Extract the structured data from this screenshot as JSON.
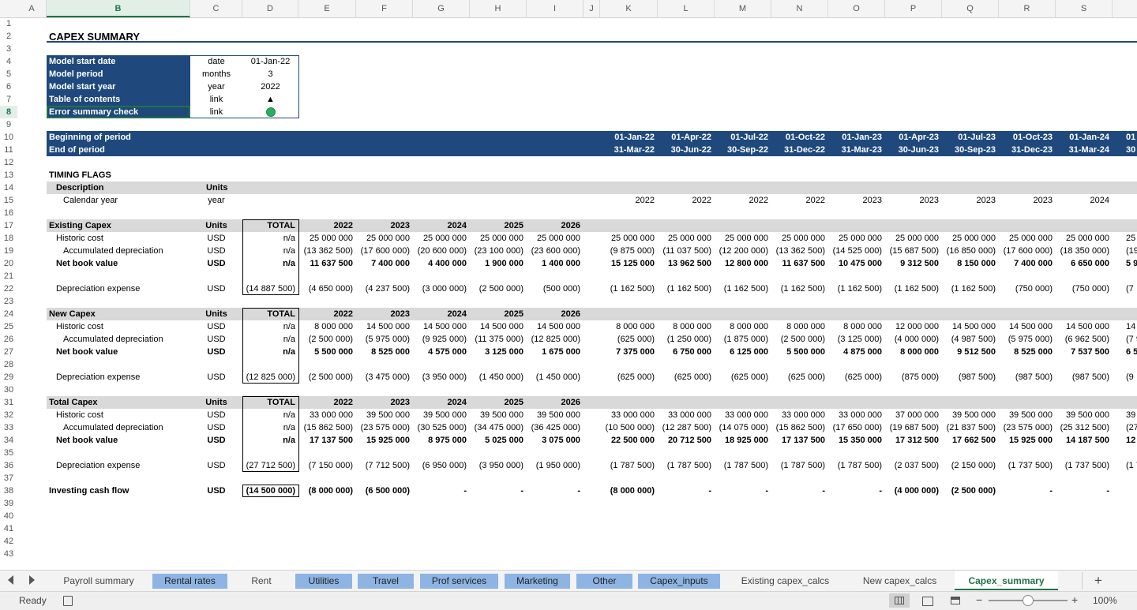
{
  "columns": [
    "A",
    "B",
    "C",
    "D",
    "E",
    "F",
    "G",
    "H",
    "I",
    "J",
    "K",
    "L",
    "M",
    "N",
    "O",
    "P",
    "Q",
    "R",
    "S"
  ],
  "rows": [
    "1",
    "2",
    "3",
    "4",
    "5",
    "6",
    "7",
    "8",
    "9",
    "10",
    "11",
    "12",
    "13",
    "14",
    "15",
    "16",
    "17",
    "18",
    "19",
    "20",
    "21",
    "22",
    "23",
    "24",
    "25",
    "26",
    "27",
    "28",
    "29",
    "30",
    "31",
    "32",
    "33",
    "34",
    "35",
    "36",
    "37",
    "38",
    "39",
    "40",
    "41",
    "42",
    "43"
  ],
  "title": "CAPEX SUMMARY",
  "info": [
    {
      "label": "Model start date",
      "unit": "date",
      "value": "01-Jan-22"
    },
    {
      "label": "Model period",
      "unit": "months",
      "value": "3"
    },
    {
      "label": "Model start year",
      "unit": "year",
      "value": "2022"
    },
    {
      "label": "Table of contents",
      "unit": "link",
      "value": "▲"
    },
    {
      "label": "Error summary check",
      "unit": "link",
      "value": ""
    }
  ],
  "error_check_color": "#27ae60",
  "accent_blue": "#1f497d",
  "period_header": {
    "begin_label": "Beginning of period",
    "end_label": "End of period",
    "begin": [
      "01-Jan-22",
      "01-Apr-22",
      "01-Jul-22",
      "01-Oct-22",
      "01-Jan-23",
      "01-Apr-23",
      "01-Jul-23",
      "01-Oct-23",
      "01-Jan-24",
      "01"
    ],
    "end": [
      "31-Mar-22",
      "30-Jun-22",
      "30-Sep-22",
      "31-Dec-22",
      "31-Mar-23",
      "30-Jun-23",
      "30-Sep-23",
      "31-Dec-23",
      "31-Mar-24",
      "30"
    ]
  },
  "timing": {
    "title": "TIMING FLAGS",
    "desc_label": "Description",
    "units_label": "Units",
    "cal_label": "Calendar year",
    "cal_unit": "year",
    "cal_values": [
      "2022",
      "2022",
      "2022",
      "2022",
      "2023",
      "2023",
      "2023",
      "2023",
      "2024"
    ]
  },
  "blocks": [
    {
      "header": "Existing Capex",
      "units": "Units",
      "total": "TOTAL",
      "years": [
        "2022",
        "2023",
        "2024",
        "2025",
        "2026"
      ],
      "rows": [
        {
          "label": "Historic cost",
          "unit": "USD",
          "total": "n/a",
          "years": [
            "25 000 000",
            "25 000 000",
            "25 000 000",
            "25 000 000",
            "25 000 000"
          ],
          "periods": [
            "25 000 000",
            "25 000 000",
            "25 000 000",
            "25 000 000",
            "25 000 000",
            "25 000 000",
            "25 000 000",
            "25 000 000",
            "25 000 000",
            "25 0"
          ]
        },
        {
          "label": "Accumulated depreciation",
          "unit": "USD",
          "total": "n/a",
          "years": [
            "(13 362 500)",
            "(17 600 000)",
            "(20 600 000)",
            "(23 100 000)",
            "(23 600 000)"
          ],
          "periods": [
            "(9 875 000)",
            "(11 037 500)",
            "(12 200 000)",
            "(13 362 500)",
            "(14 525 000)",
            "(15 687 500)",
            "(16 850 000)",
            "(17 600 000)",
            "(18 350 000)",
            "(19 1"
          ]
        },
        {
          "label": "Net book value",
          "unit": "USD",
          "total": "n/a",
          "years": [
            "11 637 500",
            "7 400 000",
            "4 400 000",
            "1 900 000",
            "1 400 000"
          ],
          "periods": [
            "15 125 000",
            "13 962 500",
            "12 800 000",
            "11 637 500",
            "10 475 000",
            "9 312 500",
            "8 150 000",
            "7 400 000",
            "6 650 000",
            "5 9"
          ]
        }
      ],
      "dep": {
        "label": "Depreciation expense",
        "unit": "USD",
        "total": "(14 887 500)",
        "years": [
          "(4 650 000)",
          "(4 237 500)",
          "(3 000 000)",
          "(2 500 000)",
          "(500 000)"
        ],
        "periods": [
          "(1 162 500)",
          "(1 162 500)",
          "(1 162 500)",
          "(1 162 500)",
          "(1 162 500)",
          "(1 162 500)",
          "(1 162 500)",
          "(750 000)",
          "(750 000)",
          "(7"
        ]
      }
    },
    {
      "header": "New Capex",
      "units": "Units",
      "total": "TOTAL",
      "years": [
        "2022",
        "2023",
        "2024",
        "2025",
        "2026"
      ],
      "rows": [
        {
          "label": "Historic cost",
          "unit": "USD",
          "total": "n/a",
          "years": [
            "8 000 000",
            "14 500 000",
            "14 500 000",
            "14 500 000",
            "14 500 000"
          ],
          "periods": [
            "8 000 000",
            "8 000 000",
            "8 000 000",
            "8 000 000",
            "8 000 000",
            "12 000 000",
            "14 500 000",
            "14 500 000",
            "14 500 000",
            "14 5"
          ]
        },
        {
          "label": "Accumulated depreciation",
          "unit": "USD",
          "total": "n/a",
          "years": [
            "(2 500 000)",
            "(5 975 000)",
            "(9 925 000)",
            "(11 375 000)",
            "(12 825 000)"
          ],
          "periods": [
            "(625 000)",
            "(1 250 000)",
            "(1 875 000)",
            "(2 500 000)",
            "(3 125 000)",
            "(4 000 000)",
            "(4 987 500)",
            "(5 975 000)",
            "(6 962 500)",
            "(7 9"
          ]
        },
        {
          "label": "Net book value",
          "unit": "USD",
          "total": "n/a",
          "years": [
            "5 500 000",
            "8 525 000",
            "4 575 000",
            "3 125 000",
            "1 675 000"
          ],
          "periods": [
            "7 375 000",
            "6 750 000",
            "6 125 000",
            "5 500 000",
            "4 875 000",
            "8 000 000",
            "9 512 500",
            "8 525 000",
            "7 537 500",
            "6 5"
          ]
        }
      ],
      "dep": {
        "label": "Depreciation expense",
        "unit": "USD",
        "total": "(12 825 000)",
        "years": [
          "(2 500 000)",
          "(3 475 000)",
          "(3 950 000)",
          "(1 450 000)",
          "(1 450 000)"
        ],
        "periods": [
          "(625 000)",
          "(625 000)",
          "(625 000)",
          "(625 000)",
          "(625 000)",
          "(875 000)",
          "(987 500)",
          "(987 500)",
          "(987 500)",
          "(9"
        ]
      }
    },
    {
      "header": "Total Capex",
      "units": "Units",
      "total": "TOTAL",
      "years": [
        "2022",
        "2023",
        "2024",
        "2025",
        "2026"
      ],
      "rows": [
        {
          "label": "Historic cost",
          "unit": "USD",
          "total": "n/a",
          "years": [
            "33 000 000",
            "39 500 000",
            "39 500 000",
            "39 500 000",
            "39 500 000"
          ],
          "periods": [
            "33 000 000",
            "33 000 000",
            "33 000 000",
            "33 000 000",
            "33 000 000",
            "37 000 000",
            "39 500 000",
            "39 500 000",
            "39 500 000",
            "39 5"
          ]
        },
        {
          "label": "Accumulated depreciation",
          "unit": "USD",
          "total": "n/a",
          "years": [
            "(15 862 500)",
            "(23 575 000)",
            "(30 525 000)",
            "(34 475 000)",
            "(36 425 000)"
          ],
          "periods": [
            "(10 500 000)",
            "(12 287 500)",
            "(14 075 000)",
            "(15 862 500)",
            "(17 650 000)",
            "(19 687 500)",
            "(21 837 500)",
            "(23 575 000)",
            "(25 312 500)",
            "(27 0"
          ]
        },
        {
          "label": "Net book value",
          "unit": "USD",
          "total": "n/a",
          "years": [
            "17 137 500",
            "15 925 000",
            "8 975 000",
            "5 025 000",
            "3 075 000"
          ],
          "periods": [
            "22 500 000",
            "20 712 500",
            "18 925 000",
            "17 137 500",
            "15 350 000",
            "17 312 500",
            "17 662 500",
            "15 925 000",
            "14 187 500",
            "12 4"
          ]
        }
      ],
      "dep": {
        "label": "Depreciation expense",
        "unit": "USD",
        "total": "(27 712 500)",
        "years": [
          "(7 150 000)",
          "(7 712 500)",
          "(6 950 000)",
          "(3 950 000)",
          "(1 950 000)"
        ],
        "periods": [
          "(1 787 500)",
          "(1 787 500)",
          "(1 787 500)",
          "(1 787 500)",
          "(1 787 500)",
          "(2 037 500)",
          "(2 150 000)",
          "(1 737 500)",
          "(1 737 500)",
          "(1 7"
        ]
      }
    }
  ],
  "investing": {
    "label": "Investing cash flow",
    "unit": "USD",
    "total": "(14 500 000)",
    "years": [
      "(8 000 000)",
      "(6 500 000)",
      "-",
      "-",
      "-"
    ],
    "periods": [
      "(8 000 000)",
      "-",
      "-",
      "-",
      "-",
      "(4 000 000)",
      "(2 500 000)",
      "-",
      "-"
    ]
  },
  "tabs": [
    {
      "label": "Payroll summary",
      "style": "plain"
    },
    {
      "label": "Rental rates",
      "style": "blue"
    },
    {
      "label": "Rent",
      "style": "plain"
    },
    {
      "label": "Utilities",
      "style": "blue"
    },
    {
      "label": "Travel",
      "style": "blue"
    },
    {
      "label": "Prof services",
      "style": "blue"
    },
    {
      "label": "Marketing",
      "style": "blue"
    },
    {
      "label": "Other",
      "style": "blue"
    },
    {
      "label": "Capex_inputs",
      "style": "blue"
    },
    {
      "label": "Existing capex_calcs",
      "style": "plain"
    },
    {
      "label": "New capex_calcs",
      "style": "plain"
    },
    {
      "label": "Capex_summary",
      "style": "active"
    }
  ],
  "add_sheet": "+",
  "status": {
    "ready": "Ready",
    "zoom": "100%",
    "zoom_level_percent": 100,
    "zoom_out": "−",
    "zoom_in": "+"
  }
}
